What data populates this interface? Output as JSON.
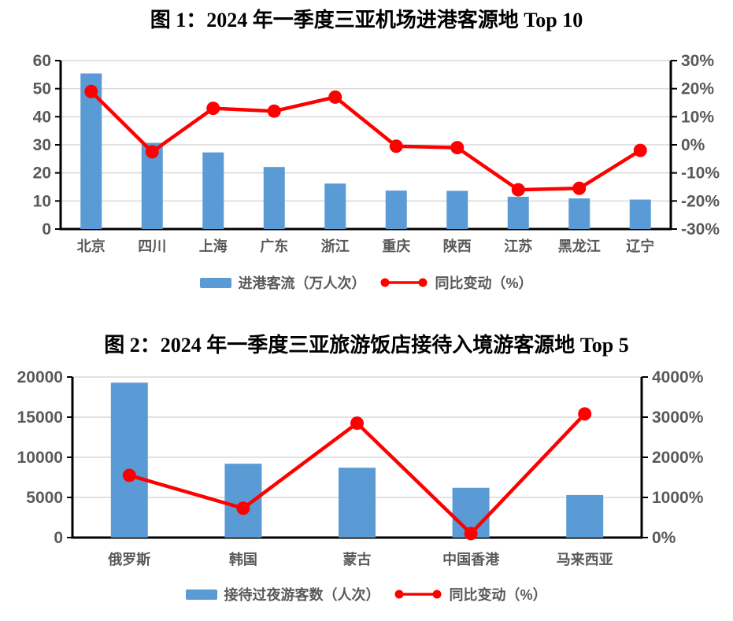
{
  "colors": {
    "bar": "#5B9BD5",
    "line": "#FF0000",
    "axis_text": "#595959",
    "grid": "#D9D9D9",
    "axis_line": "#000000",
    "title_text": "#000000"
  },
  "figures": [
    {
      "title": "图 1：2024 年一季度三亚机场进港客源地 Top 10",
      "legend_bar": "进港客流（万人次）",
      "legend_line": "同比变动（%）"
    },
    {
      "title": "图 2：2024 年一季度三亚旅游饭店接待入境游客源地 Top 5",
      "legend_bar": "接待过夜游客数（人次）",
      "legend_line": "同比变动（%）"
    }
  ],
  "chart_data": [
    {
      "type": "bar+line",
      "title": "图 1：2024 年一季度三亚机场进港客源地 Top 10",
      "categories": [
        "北京",
        "四川",
        "上海",
        "广东",
        "浙江",
        "重庆",
        "陕西",
        "江苏",
        "黑龙江",
        "辽宁"
      ],
      "series": [
        {
          "name": "进港客流（万人次）",
          "type": "bar",
          "axis": "left",
          "values": [
            55.4,
            30.7,
            27.3,
            22.1,
            16.2,
            13.7,
            13.6,
            11.5,
            10.9,
            10.5
          ]
        },
        {
          "name": "同比变动（%）",
          "type": "line",
          "axis": "right",
          "values": [
            19,
            -2.5,
            13,
            12,
            17,
            -0.5,
            -1,
            -16,
            -15.5,
            -2
          ]
        }
      ],
      "left_axis": {
        "min": 0,
        "max": 60,
        "tick_values": [
          0,
          10,
          20,
          30,
          40,
          50,
          60
        ],
        "tick_labels": [
          "0",
          "10",
          "20",
          "30",
          "40",
          "50",
          "60"
        ]
      },
      "right_axis": {
        "min": -30,
        "max": 30,
        "tick_values": [
          -30,
          -20,
          -10,
          0,
          10,
          20,
          30
        ],
        "tick_labels": [
          "-30%",
          "-20%",
          "-10%",
          "0%",
          "10%",
          "20%",
          "30%"
        ]
      },
      "grid": true,
      "legend_position": "bottom"
    },
    {
      "type": "bar+line",
      "title": "图 2：2024 年一季度三亚旅游饭店接待入境游客源地 Top 5",
      "categories": [
        "俄罗斯",
        "韩国",
        "蒙古",
        "中国香港",
        "马来西亚"
      ],
      "series": [
        {
          "name": "接待过夜游客数（人次）",
          "type": "bar",
          "axis": "left",
          "values": [
            19300,
            9200,
            8700,
            6200,
            5300
          ]
        },
        {
          "name": "同比变动（%）",
          "type": "line",
          "axis": "right",
          "values": [
            1550,
            730,
            2850,
            100,
            3080
          ]
        }
      ],
      "left_axis": {
        "min": 0,
        "max": 20000,
        "tick_values": [
          0,
          5000,
          10000,
          15000,
          20000
        ],
        "tick_labels": [
          "0",
          "5000",
          "10000",
          "15000",
          "20000"
        ]
      },
      "right_axis": {
        "min": 0,
        "max": 4000,
        "tick_values": [
          0,
          1000,
          2000,
          3000,
          4000
        ],
        "tick_labels": [
          "0%",
          "1000%",
          "2000%",
          "3000%",
          "4000%"
        ]
      },
      "grid": true,
      "legend_position": "bottom"
    }
  ]
}
